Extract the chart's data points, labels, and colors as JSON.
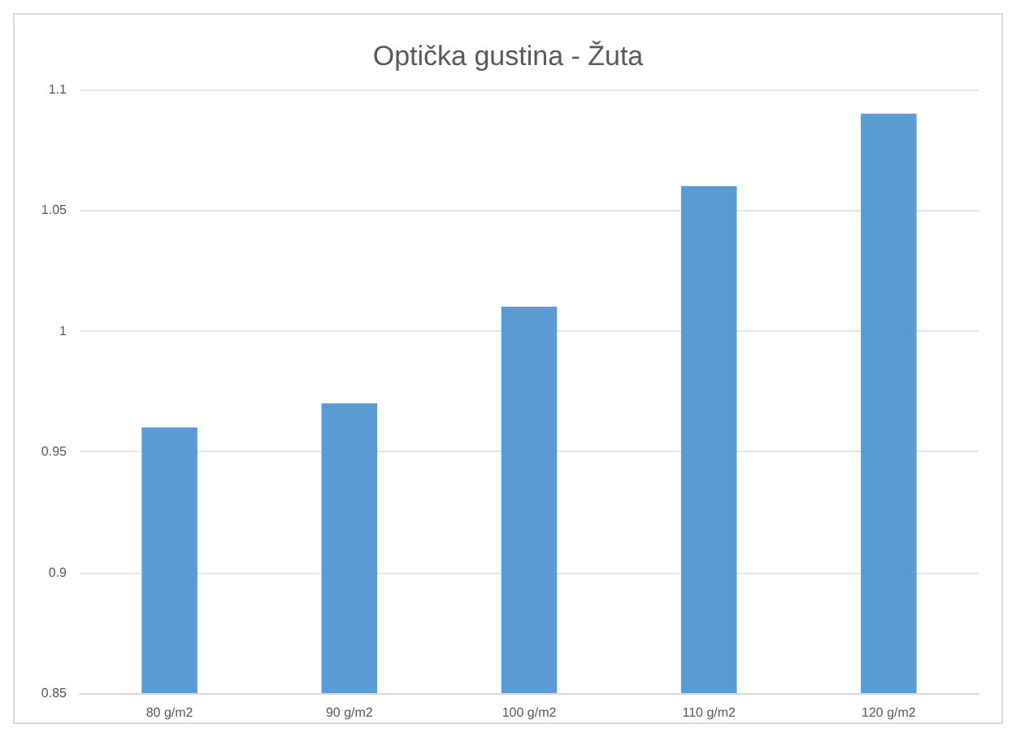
{
  "chart_data": {
    "type": "bar",
    "title": "Optička gustina - Žuta",
    "categories": [
      "80 g/m2",
      "90 g/m2",
      "100 g/m2",
      "110 g/m2",
      "120 g/m2"
    ],
    "values": [
      0.96,
      0.97,
      1.01,
      1.06,
      1.09
    ],
    "color": "#5b9bd5",
    "ylim": [
      0.85,
      1.1
    ],
    "yticks": [
      0.85,
      0.9,
      0.95,
      1,
      1.05,
      1.1
    ],
    "grid": "y"
  }
}
